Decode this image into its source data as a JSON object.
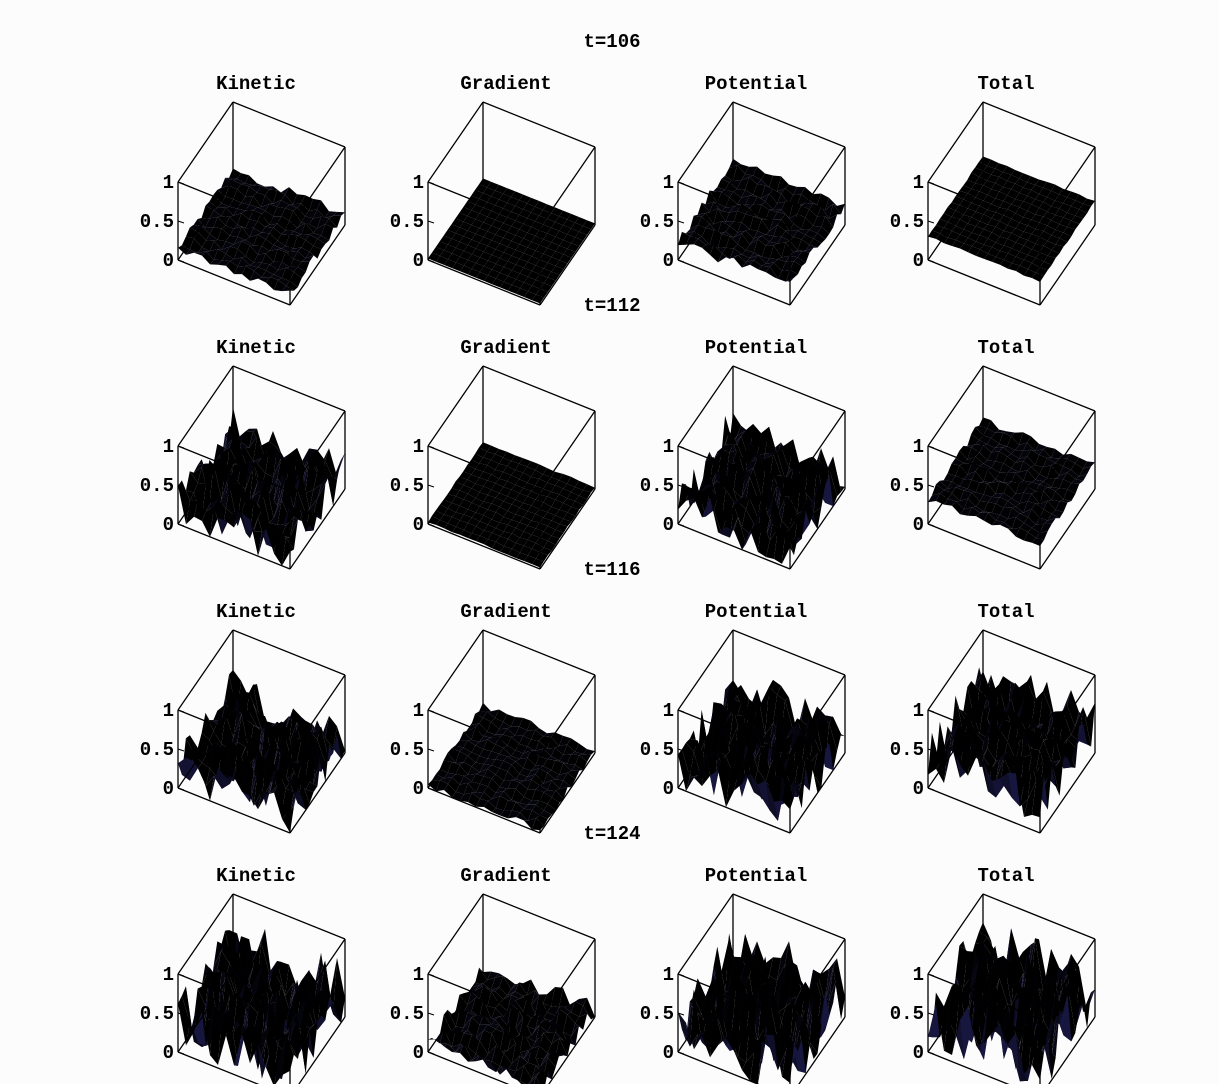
{
  "chart_data": {
    "type": "surface3d-grid",
    "zlim": [
      0,
      1
    ],
    "z_ticks": [
      "0",
      "0.5",
      "1"
    ],
    "panel_titles": [
      "Kinetic",
      "Gradient",
      "Potential",
      "Total"
    ],
    "colors": {
      "surface_low": "#b7c4ee",
      "surface_mid": "#c7b0d6",
      "surface_high": "#f2b072",
      "surface_dark": "#2a2870",
      "axis": "#000000"
    },
    "rows": [
      {
        "time_label": "t=106",
        "panels": [
          {
            "title": "Kinetic",
            "mean": 0.12,
            "spread": 0.12
          },
          {
            "title": "Gradient",
            "mean": 0.02,
            "spread": 0.0
          },
          {
            "title": "Potential",
            "mean": 0.22,
            "spread": 0.14
          },
          {
            "title": "Total",
            "mean": 0.3,
            "spread": 0.02
          }
        ]
      },
      {
        "time_label": "t=112",
        "panels": [
          {
            "title": "Kinetic",
            "mean": 0.15,
            "spread": 0.55
          },
          {
            "title": "Gradient",
            "mean": 0.02,
            "spread": 0.02
          },
          {
            "title": "Potential",
            "mean": 0.15,
            "spread": 0.55
          },
          {
            "title": "Total",
            "mean": 0.3,
            "spread": 0.1
          }
        ]
      },
      {
        "time_label": "t=116",
        "panels": [
          {
            "title": "Kinetic",
            "mean": 0.15,
            "spread": 0.6
          },
          {
            "title": "Gradient",
            "mean": 0.02,
            "spread": 0.1
          },
          {
            "title": "Potential",
            "mean": 0.15,
            "spread": 0.65
          },
          {
            "title": "Total",
            "mean": 0.3,
            "spread": 0.6
          }
        ]
      },
      {
        "time_label": "t=124",
        "panels": [
          {
            "title": "Kinetic",
            "mean": 0.2,
            "spread": 0.8
          },
          {
            "title": "Gradient",
            "mean": 0.05,
            "spread": 0.25
          },
          {
            "title": "Potential",
            "mean": 0.22,
            "spread": 0.8
          },
          {
            "title": "Total",
            "mean": 0.25,
            "spread": 0.85
          }
        ]
      }
    ]
  }
}
